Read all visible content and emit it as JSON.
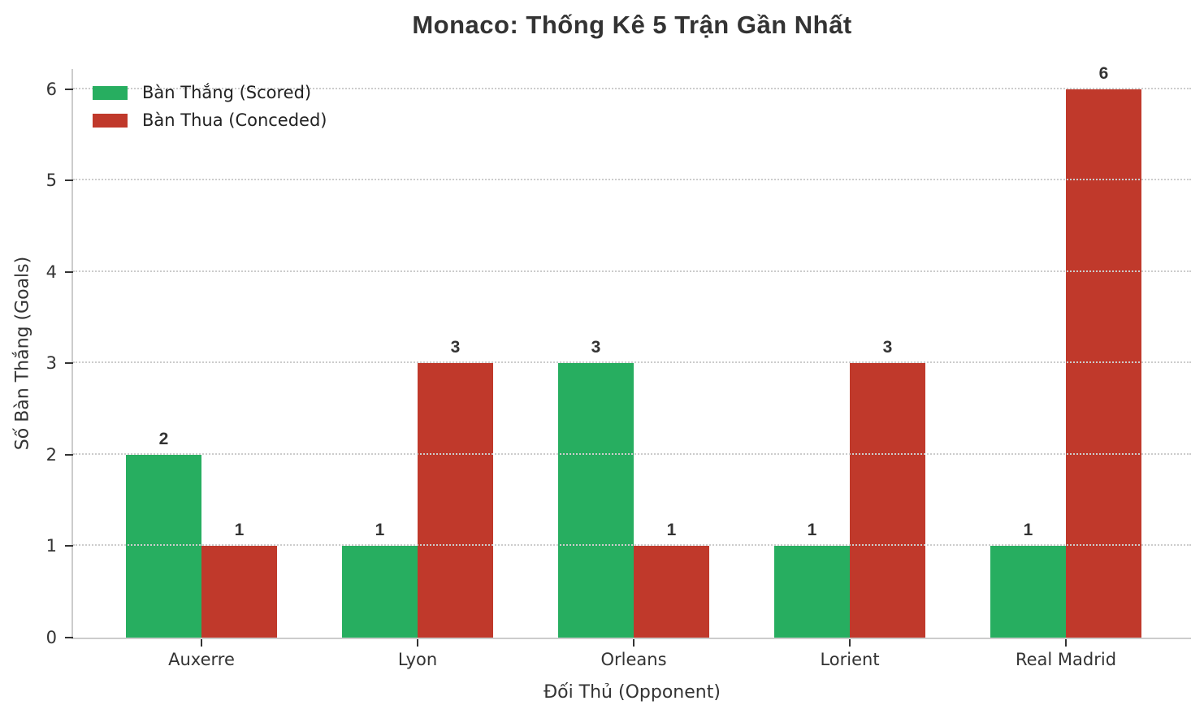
{
  "chart_data": {
    "type": "bar",
    "title": "Monaco: Thống Kê 5 Trận Gần Nhất",
    "xlabel": "Đối Thủ (Opponent)",
    "ylabel": "Số Bàn Thắng (Goals)",
    "categories": [
      "Auxerre",
      "Lyon",
      "Orleans",
      "Lorient",
      "Real Madrid"
    ],
    "series": [
      {
        "name": "Bàn Thắng (Scored)",
        "color": "#27ae60",
        "values": [
          2,
          1,
          3,
          1,
          1
        ]
      },
      {
        "name": "Bàn Thua (Conceded)",
        "color": "#c0392b",
        "values": [
          1,
          3,
          1,
          3,
          6
        ]
      }
    ],
    "yticks": [
      0,
      1,
      2,
      3,
      4,
      5,
      6
    ],
    "ylim": [
      0,
      6.22
    ],
    "grid": "horizontal-dotted",
    "legend_position": "upper-left",
    "bar_value_labels": true
  },
  "colors": {
    "text": "#333333",
    "grid": "#cccccc",
    "spine": "#cccccc",
    "background": "#ffffff"
  }
}
